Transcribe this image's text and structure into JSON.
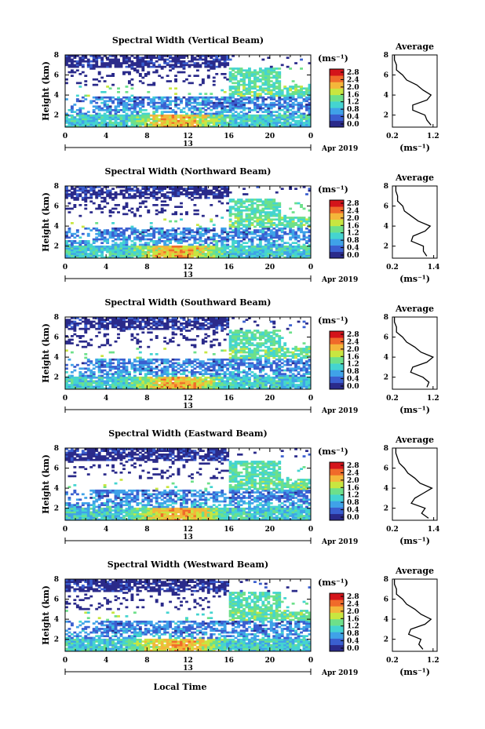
{
  "chart_data": {
    "type": "heatmap",
    "date_label": "Apr 2019",
    "day_label": "13",
    "xlabel": "Local Time",
    "ylabel": "Height (km)",
    "colorbar_unit": "(ms⁻¹)",
    "profile_title": "Average",
    "profile_xlabel": "(ms⁻¹)",
    "x_ticks": [
      "0",
      "4",
      "8",
      "12",
      "16",
      "20",
      "0"
    ],
    "y_ticks": [
      "2",
      "4",
      "6",
      "8"
    ],
    "xlim_hours": [
      0,
      24
    ],
    "ylim_km": [
      0.8,
      8.0
    ],
    "color_scale": [
      "#2a2a8a",
      "#3a5fd0",
      "#3fa2e8",
      "#44d4d0",
      "#6de08a",
      "#c8e640",
      "#f4b63a",
      "#f06a2a",
      "#d4141a"
    ],
    "panels": [
      {
        "title": "Spectral Width (Vertical Beam)",
        "colorbar_ticks": [
          "2.8",
          "2.4",
          "2.0",
          "1.6",
          "1.2",
          "0.8",
          "0.4",
          "0.0"
        ],
        "profile_x_ticks": [
          "0.2",
          "1.2"
        ],
        "profile_xlim": [
          0.2,
          1.3
        ],
        "profile": {
          "height": [
            1.0,
            1.5,
            2.0,
            2.5,
            3.0,
            3.5,
            4.0,
            4.5,
            5.0,
            5.5,
            6.0,
            6.5,
            7.0,
            7.5,
            8.0
          ],
          "value": [
            1.15,
            1.05,
            1.0,
            0.7,
            0.7,
            1.05,
            1.15,
            0.95,
            0.8,
            0.55,
            0.45,
            0.3,
            0.3,
            0.25,
            0.25
          ]
        }
      },
      {
        "title": "Spectral Width (Northward Beam)",
        "colorbar_ticks": [
          "2.8",
          "2.4",
          "2.0",
          "1.6",
          "1.2",
          "0.8",
          "0.4",
          "0.0"
        ],
        "profile_x_ticks": [
          "0.2",
          "1.4"
        ],
        "profile_xlim": [
          0.2,
          1.5
        ],
        "profile": {
          "height": [
            1.0,
            1.5,
            2.0,
            2.5,
            3.0,
            3.5,
            4.0,
            4.5,
            5.0,
            5.5,
            6.0,
            6.5,
            7.0,
            7.5,
            8.0
          ],
          "value": [
            1.2,
            1.1,
            1.1,
            0.75,
            0.8,
            1.15,
            1.3,
            0.95,
            0.75,
            0.55,
            0.5,
            0.35,
            0.35,
            0.3,
            0.3
          ]
        }
      },
      {
        "title": "Spectral Width (Southward Beam)",
        "colorbar_ticks": [
          "2.8",
          "2.4",
          "2.0",
          "1.6",
          "1.2",
          "0.8",
          "0.4",
          "0.0"
        ],
        "profile_x_ticks": [
          "0.2",
          "1.2"
        ],
        "profile_xlim": [
          0.2,
          1.3
        ],
        "profile": {
          "height": [
            1.0,
            1.5,
            2.0,
            2.5,
            3.0,
            3.5,
            4.0,
            4.5,
            5.0,
            5.5,
            6.0,
            6.5,
            7.0,
            7.5,
            8.0
          ],
          "value": [
            1.05,
            1.1,
            0.95,
            0.65,
            0.7,
            1.05,
            1.2,
            0.9,
            0.75,
            0.55,
            0.45,
            0.3,
            0.3,
            0.25,
            0.25
          ]
        }
      },
      {
        "title": "Spectral Width (Eastward Beam)",
        "colorbar_ticks": [
          "2.8",
          "2.4",
          "2.0",
          "1.6",
          "1.2",
          "0.8",
          "0.4",
          "0.0"
        ],
        "profile_x_ticks": [
          "0.2",
          "1.4"
        ],
        "profile_xlim": [
          0.2,
          1.5
        ],
        "profile": {
          "height": [
            1.0,
            1.5,
            2.0,
            2.5,
            3.0,
            3.5,
            4.0,
            4.5,
            5.0,
            5.5,
            6.0,
            6.5,
            7.0,
            7.5,
            8.0
          ],
          "value": [
            1.25,
            1.05,
            1.15,
            0.75,
            0.85,
            1.1,
            1.35,
            1.0,
            0.85,
            0.65,
            0.55,
            0.4,
            0.35,
            0.3,
            0.3
          ]
        }
      },
      {
        "title": "Spectral Width (Westward Beam)",
        "colorbar_ticks": [
          "2.8",
          "2.4",
          "2.0",
          "1.6",
          "1.2",
          "0.8",
          "0.4",
          "0.0"
        ],
        "profile_x_ticks": [
          "0.2",
          "1.2"
        ],
        "profile_xlim": [
          0.2,
          1.3
        ],
        "profile": {
          "height": [
            1.0,
            1.5,
            2.0,
            2.5,
            3.0,
            3.5,
            4.0,
            4.5,
            5.0,
            5.5,
            6.0,
            6.5,
            7.0,
            7.5,
            8.0
          ],
          "value": [
            0.95,
            0.85,
            0.9,
            0.6,
            0.65,
            1.0,
            1.15,
            0.9,
            0.75,
            0.55,
            0.45,
            0.3,
            0.3,
            0.25,
            0.25
          ]
        }
      }
    ]
  }
}
